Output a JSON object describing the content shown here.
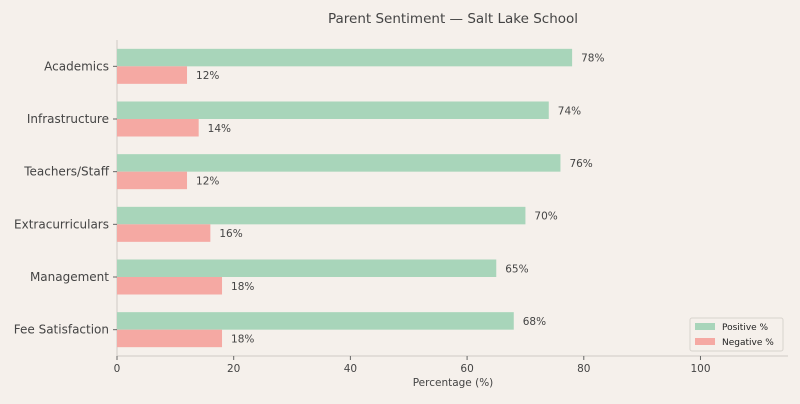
{
  "chart_data": {
    "type": "bar",
    "orientation": "horizontal",
    "title": "Parent Sentiment — Salt Lake School",
    "xlabel": "Percentage (%)",
    "ylabel": "",
    "xlim": [
      0,
      115
    ],
    "xticks": [
      0,
      20,
      40,
      60,
      80,
      100
    ],
    "categories": [
      "Academics",
      "Infrastructure",
      "Teachers/Staff",
      "Extracurriculars",
      "Management",
      "Fee Satisfaction"
    ],
    "series": [
      {
        "name": "Positive %",
        "color": "#a8d5ba",
        "values": [
          78,
          74,
          76,
          70,
          65,
          68
        ]
      },
      {
        "name": "Negative %",
        "color": "#f5a9a3",
        "values": [
          12,
          14,
          12,
          16,
          18,
          18
        ]
      }
    ],
    "value_label_suffix": "%",
    "legend_position": "lower-right",
    "grid": false
  }
}
